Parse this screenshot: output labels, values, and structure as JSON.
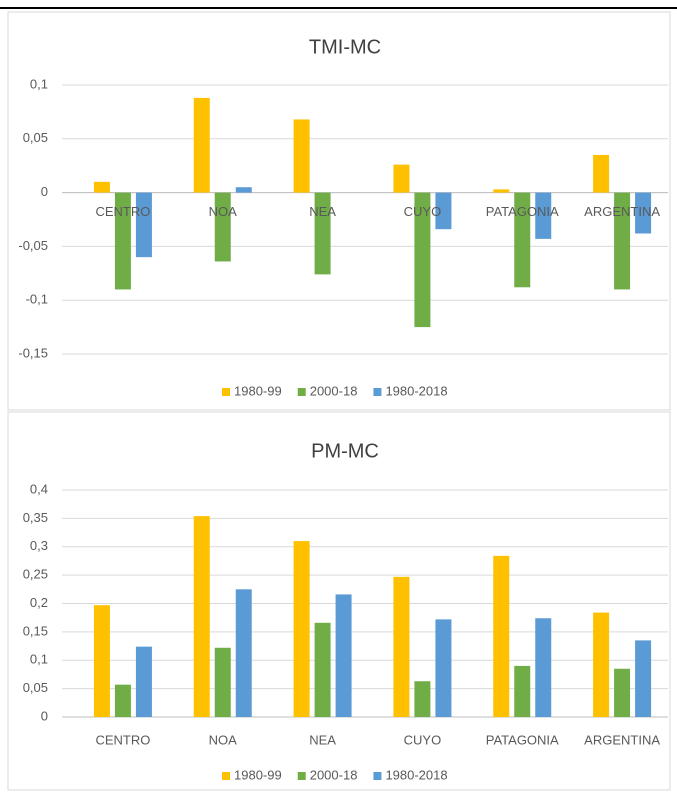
{
  "chart_data": [
    {
      "type": "bar",
      "title": "TMI-MC",
      "categories": [
        "CENTRO",
        "NOA",
        "NEA",
        "CUYO",
        "PATAGONIA",
        "ARGENTINA"
      ],
      "series": [
        {
          "name": "1980-99",
          "color": "#ffc000",
          "values": [
            0.01,
            0.088,
            0.068,
            0.026,
            0.003,
            0.035
          ]
        },
        {
          "name": "2000-18",
          "color": "#70ad47",
          "values": [
            -0.09,
            -0.064,
            -0.076,
            -0.125,
            -0.088,
            -0.09
          ]
        },
        {
          "name": "1980-2018",
          "color": "#5b9bd5",
          "values": [
            -0.06,
            0.005,
            0,
            -0.034,
            -0.043,
            -0.038
          ]
        }
      ],
      "ylim": [
        -0.15,
        0.1
      ],
      "yticks": [
        {
          "value": -0.15,
          "label": "-0,15"
        },
        {
          "value": -0.1,
          "label": "-0,1"
        },
        {
          "value": -0.05,
          "label": "-0,05"
        },
        0,
        {
          "value": 0.05,
          "label": "0,05"
        },
        {
          "value": 0.1,
          "label": "0,1"
        }
      ],
      "grid": true,
      "legend": "bottom"
    },
    {
      "type": "bar",
      "title": "PM-MC",
      "categories": [
        "CENTRO",
        "NOA",
        "NEA",
        "CUYO",
        "PATAGONIA",
        "ARGENTINA"
      ],
      "series": [
        {
          "name": "1980-99",
          "color": "#ffc000",
          "values": [
            0.197,
            0.354,
            0.31,
            0.247,
            0.284,
            0.184
          ]
        },
        {
          "name": "2000-18",
          "color": "#70ad47",
          "values": [
            0.057,
            0.122,
            0.166,
            0.063,
            0.09,
            0.085
          ]
        },
        {
          "name": "1980-2018",
          "color": "#5b9bd5",
          "values": [
            0.124,
            0.225,
            0.216,
            0.172,
            0.174,
            0.135
          ]
        }
      ],
      "ylim": [
        0,
        0.4
      ],
      "yticks": [
        0,
        {
          "value": 0.05,
          "label": "0,05"
        },
        {
          "value": 0.1,
          "label": "0,1"
        },
        {
          "value": 0.15,
          "label": "0,15"
        },
        {
          "value": 0.2,
          "label": "0,2"
        },
        {
          "value": 0.25,
          "label": "0,25"
        },
        {
          "value": 0.3,
          "label": "0,3"
        },
        {
          "value": 0.35,
          "label": "0,35"
        },
        {
          "value": 0.4,
          "label": "0,4"
        }
      ],
      "grid": true,
      "legend": "bottom"
    }
  ]
}
